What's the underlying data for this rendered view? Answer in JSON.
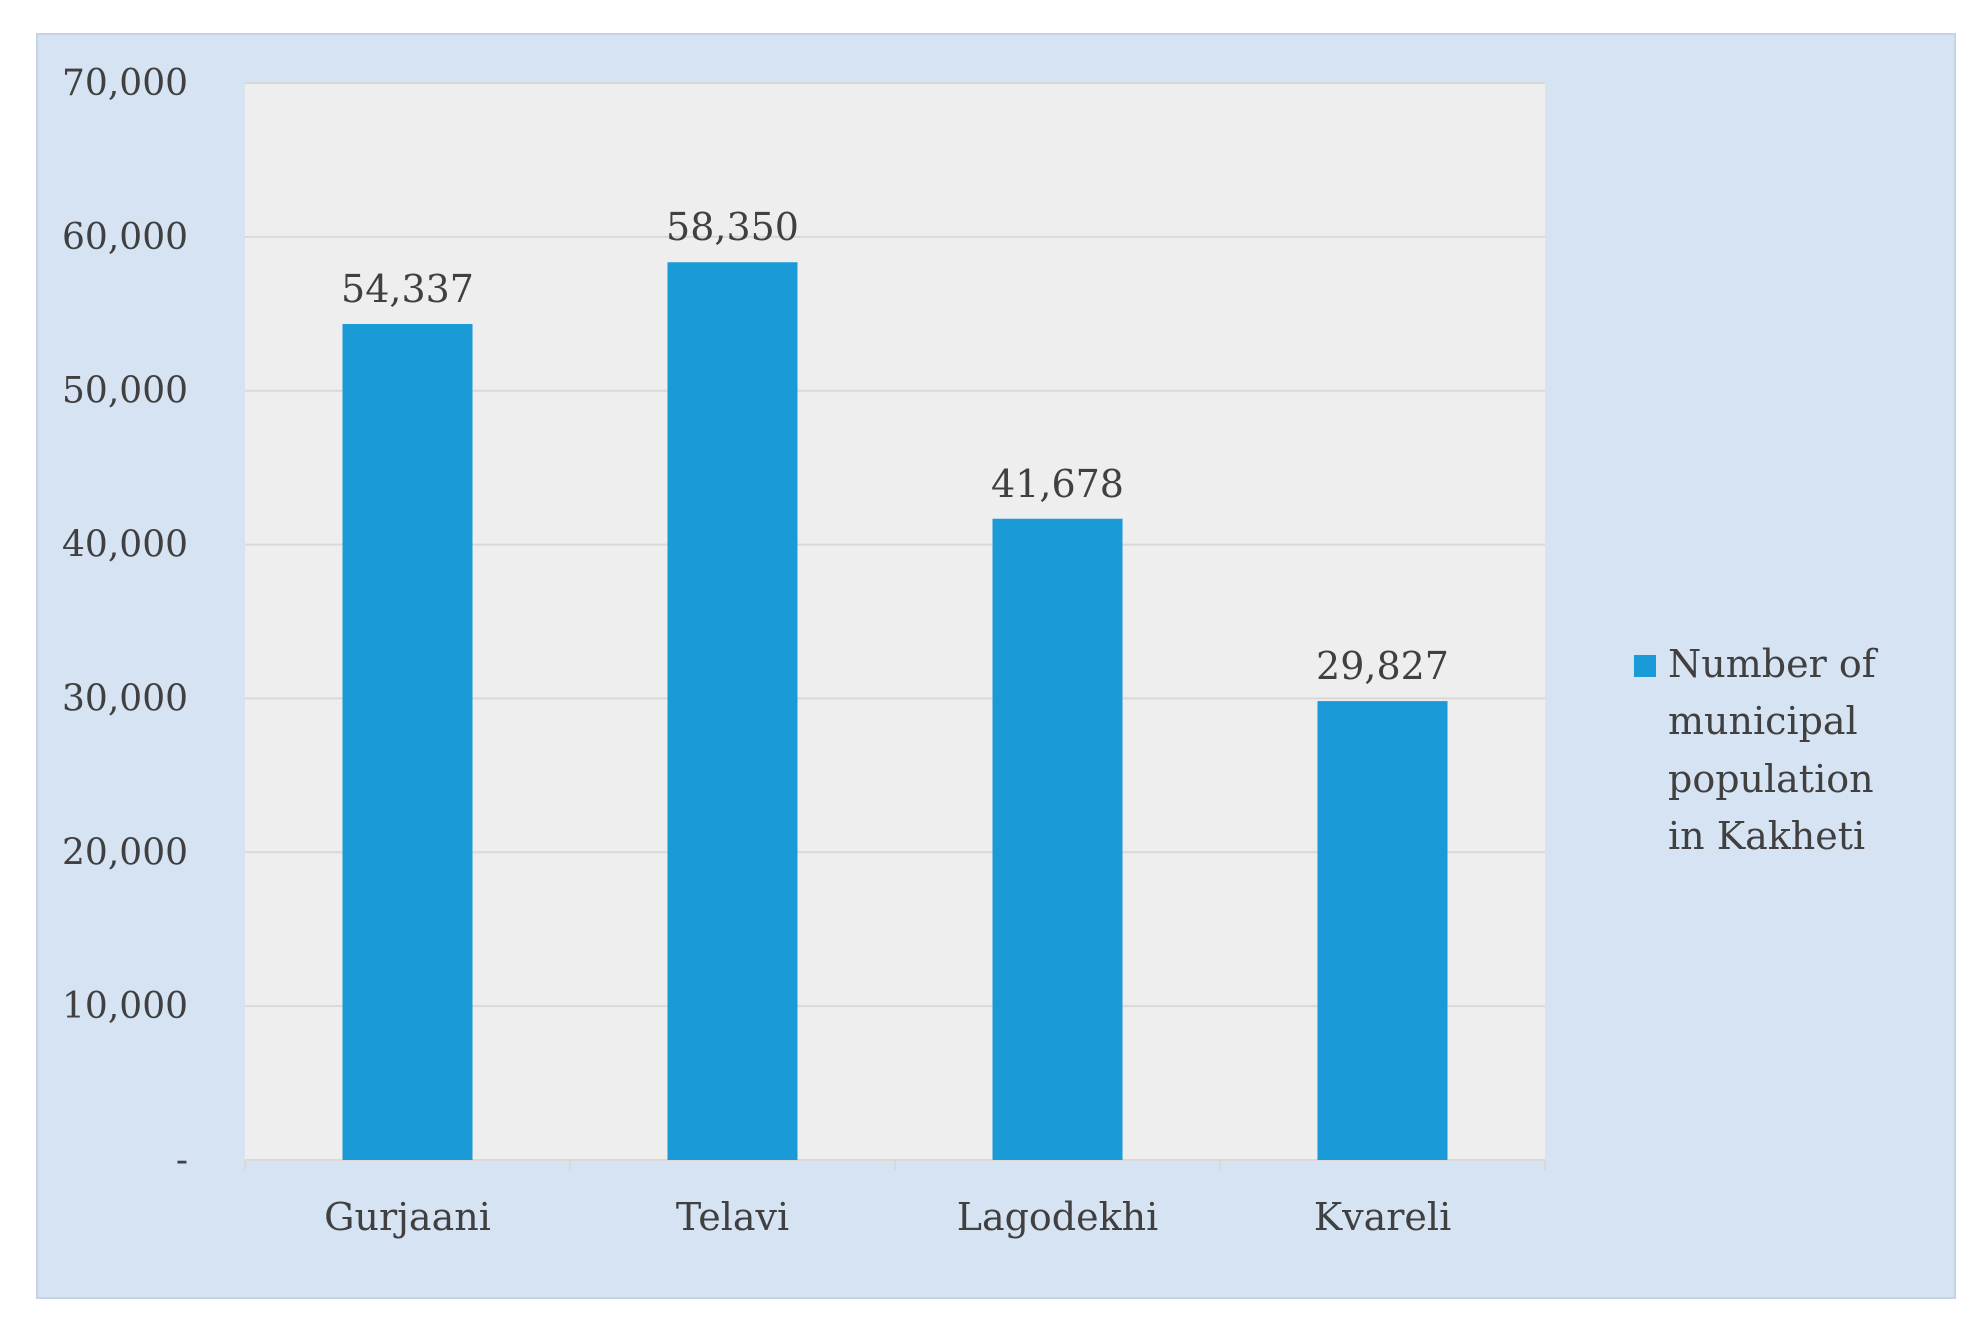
{
  "chart_data": {
    "type": "bar",
    "categories": [
      "Gurjaani",
      "Telavi",
      "Lagodekhi",
      "Kvareli"
    ],
    "series": [
      {
        "name": "Number of municipal population in Kakheti",
        "values": [
          54337,
          58350,
          41678,
          29827
        ],
        "color": "#1a9bd7"
      }
    ],
    "data_labels": [
      "54,337",
      "58,350",
      "41,678",
      "29,827"
    ],
    "y_ticks": [
      "-",
      "10,000",
      "20,000",
      "30,000",
      "40,000",
      "50,000",
      "60,000",
      "70,000"
    ],
    "ylim": [
      0,
      70000
    ],
    "grid": true,
    "legend": {
      "position": "right",
      "lines": [
        "Number of",
        "municipal",
        "population",
        "in Kakheti"
      ]
    },
    "colors": {
      "frame_background": "#d6e3f3",
      "plot_background": "#eeeeee",
      "gridline": "#d9d9d9",
      "text": "#404040"
    }
  }
}
